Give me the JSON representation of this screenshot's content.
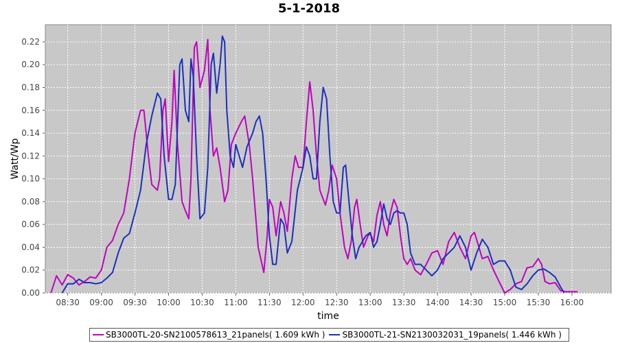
{
  "chart_data": {
    "type": "line",
    "title": "5-1-2018",
    "xlabel": "time",
    "ylabel": "Watt/Wp",
    "x_ticks": [
      "08:30",
      "09:00",
      "09:30",
      "10:00",
      "10:30",
      "11:00",
      "11:30",
      "12:00",
      "12:30",
      "13:00",
      "13:30",
      "14:00",
      "14:30",
      "15:00",
      "15:30",
      "16:00"
    ],
    "y_ticks": [
      "0.00",
      "0.02",
      "0.04",
      "0.06",
      "0.08",
      "0.10",
      "0.12",
      "0.14",
      "0.16",
      "0.18",
      "0.20",
      "0.22"
    ],
    "xlim": [
      "08:10",
      "16:35"
    ],
    "ylim": [
      0,
      0.235
    ],
    "grid": true,
    "legend_position": "bottom",
    "series": [
      {
        "name": "SB3000TL-20-SN2100578613_21panels",
        "legend_label": "SB3000TL-20-SN2100578613_21panels( 1.609 kWh )",
        "color": "#c000c0",
        "points": [
          [
            "08:15",
            0.0
          ],
          [
            "08:20",
            0.015
          ],
          [
            "08:25",
            0.007
          ],
          [
            "08:30",
            0.016
          ],
          [
            "08:35",
            0.013
          ],
          [
            "08:40",
            0.007
          ],
          [
            "08:45",
            0.01
          ],
          [
            "08:50",
            0.014
          ],
          [
            "08:55",
            0.013
          ],
          [
            "09:00",
            0.02
          ],
          [
            "09:05",
            0.04
          ],
          [
            "09:10",
            0.046
          ],
          [
            "09:15",
            0.06
          ],
          [
            "09:20",
            0.07
          ],
          [
            "09:25",
            0.1
          ],
          [
            "09:30",
            0.14
          ],
          [
            "09:35",
            0.16
          ],
          [
            "09:38",
            0.16
          ],
          [
            "09:42",
            0.12
          ],
          [
            "09:45",
            0.095
          ],
          [
            "09:50",
            0.09
          ],
          [
            "09:52",
            0.1
          ],
          [
            "09:55",
            0.16
          ],
          [
            "09:57",
            0.17
          ],
          [
            "10:00",
            0.115
          ],
          [
            "10:03",
            0.15
          ],
          [
            "10:05",
            0.195
          ],
          [
            "10:08",
            0.13
          ],
          [
            "10:12",
            0.08
          ],
          [
            "10:15",
            0.072
          ],
          [
            "10:18",
            0.065
          ],
          [
            "10:20",
            0.1
          ],
          [
            "10:23",
            0.215
          ],
          [
            "10:25",
            0.22
          ],
          [
            "10:28",
            0.18
          ],
          [
            "10:32",
            0.195
          ],
          [
            "10:35",
            0.222
          ],
          [
            "10:37",
            0.16
          ],
          [
            "10:40",
            0.12
          ],
          [
            "10:43",
            0.127
          ],
          [
            "10:46",
            0.11
          ],
          [
            "10:50",
            0.08
          ],
          [
            "10:53",
            0.09
          ],
          [
            "10:56",
            0.13
          ],
          [
            "11:00",
            0.14
          ],
          [
            "11:05",
            0.15
          ],
          [
            "11:08",
            0.155
          ],
          [
            "11:12",
            0.13
          ],
          [
            "11:15",
            0.1
          ],
          [
            "11:20",
            0.04
          ],
          [
            "11:25",
            0.018
          ],
          [
            "11:28",
            0.05
          ],
          [
            "11:30",
            0.082
          ],
          [
            "11:33",
            0.075
          ],
          [
            "11:36",
            0.05
          ],
          [
            "11:40",
            0.08
          ],
          [
            "11:43",
            0.07
          ],
          [
            "11:46",
            0.054
          ],
          [
            "11:50",
            0.1
          ],
          [
            "11:53",
            0.12
          ],
          [
            "11:56",
            0.11
          ],
          [
            "12:00",
            0.11
          ],
          [
            "12:03",
            0.15
          ],
          [
            "12:06",
            0.185
          ],
          [
            "12:09",
            0.16
          ],
          [
            "12:12",
            0.12
          ],
          [
            "12:15",
            0.09
          ],
          [
            "12:20",
            0.077
          ],
          [
            "12:23",
            0.09
          ],
          [
            "12:26",
            0.112
          ],
          [
            "12:30",
            0.1
          ],
          [
            "12:33",
            0.07
          ],
          [
            "12:37",
            0.04
          ],
          [
            "12:40",
            0.03
          ],
          [
            "12:43",
            0.045
          ],
          [
            "12:46",
            0.075
          ],
          [
            "12:48",
            0.082
          ],
          [
            "12:51",
            0.06
          ],
          [
            "12:54",
            0.04
          ],
          [
            "12:58",
            0.05
          ],
          [
            "13:00",
            0.052
          ],
          [
            "13:03",
            0.045
          ],
          [
            "13:06",
            0.068
          ],
          [
            "13:09",
            0.08
          ],
          [
            "13:12",
            0.06
          ],
          [
            "13:15",
            0.05
          ],
          [
            "13:18",
            0.07
          ],
          [
            "13:21",
            0.082
          ],
          [
            "13:24",
            0.075
          ],
          [
            "13:27",
            0.05
          ],
          [
            "13:30",
            0.03
          ],
          [
            "13:33",
            0.025
          ],
          [
            "13:36",
            0.03
          ],
          [
            "13:40",
            0.02
          ],
          [
            "13:45",
            0.016
          ],
          [
            "13:50",
            0.025
          ],
          [
            "13:55",
            0.035
          ],
          [
            "14:00",
            0.037
          ],
          [
            "14:05",
            0.025
          ],
          [
            "14:10",
            0.045
          ],
          [
            "14:15",
            0.053
          ],
          [
            "14:20",
            0.04
          ],
          [
            "14:25",
            0.03
          ],
          [
            "14:30",
            0.05
          ],
          [
            "14:33",
            0.053
          ],
          [
            "14:37",
            0.04
          ],
          [
            "14:40",
            0.03
          ],
          [
            "14:45",
            0.032
          ],
          [
            "14:50",
            0.02
          ],
          [
            "14:55",
            0.01
          ],
          [
            "15:00",
            0.0
          ],
          [
            "15:05",
            0.003
          ],
          [
            "15:10",
            0.008
          ],
          [
            "15:15",
            0.01
          ],
          [
            "15:20",
            0.022
          ],
          [
            "15:25",
            0.023
          ],
          [
            "15:30",
            0.03
          ],
          [
            "15:33",
            0.025
          ],
          [
            "15:36",
            0.01
          ],
          [
            "15:40",
            0.008
          ],
          [
            "15:45",
            0.009
          ],
          [
            "15:50",
            0.002
          ],
          [
            "15:55",
            0.001
          ],
          [
            "16:00",
            0.001
          ],
          [
            "16:05",
            0.001
          ]
        ]
      },
      {
        "name": "SB3000TL-21-SN2130032031_19panels",
        "legend_label": "SB3000TL-21-SN2130032031_19panels( 1.446 kWh )",
        "color": "#1a2fbf",
        "points": [
          [
            "08:25",
            0.0
          ],
          [
            "08:30",
            0.008
          ],
          [
            "08:35",
            0.008
          ],
          [
            "08:40",
            0.012
          ],
          [
            "08:45",
            0.009
          ],
          [
            "08:50",
            0.009
          ],
          [
            "08:55",
            0.008
          ],
          [
            "09:00",
            0.009
          ],
          [
            "09:05",
            0.013
          ],
          [
            "09:10",
            0.018
          ],
          [
            "09:15",
            0.035
          ],
          [
            "09:20",
            0.048
          ],
          [
            "09:25",
            0.052
          ],
          [
            "09:30",
            0.07
          ],
          [
            "09:35",
            0.09
          ],
          [
            "09:40",
            0.13
          ],
          [
            "09:45",
            0.155
          ],
          [
            "09:50",
            0.175
          ],
          [
            "09:53",
            0.17
          ],
          [
            "09:56",
            0.12
          ],
          [
            "10:00",
            0.082
          ],
          [
            "10:03",
            0.082
          ],
          [
            "10:06",
            0.095
          ],
          [
            "10:10",
            0.2
          ],
          [
            "10:12",
            0.205
          ],
          [
            "10:15",
            0.16
          ],
          [
            "10:18",
            0.15
          ],
          [
            "10:20",
            0.205
          ],
          [
            "10:22",
            0.19
          ],
          [
            "10:25",
            0.12
          ],
          [
            "10:28",
            0.065
          ],
          [
            "10:32",
            0.07
          ],
          [
            "10:35",
            0.11
          ],
          [
            "10:38",
            0.2
          ],
          [
            "10:40",
            0.21
          ],
          [
            "10:43",
            0.175
          ],
          [
            "10:46",
            0.2
          ],
          [
            "10:48",
            0.225
          ],
          [
            "10:50",
            0.22
          ],
          [
            "10:52",
            0.16
          ],
          [
            "10:55",
            0.12
          ],
          [
            "10:58",
            0.11
          ],
          [
            "11:00",
            0.13
          ],
          [
            "11:03",
            0.12
          ],
          [
            "11:06",
            0.11
          ],
          [
            "11:10",
            0.128
          ],
          [
            "11:15",
            0.14
          ],
          [
            "11:18",
            0.15
          ],
          [
            "11:21",
            0.155
          ],
          [
            "11:24",
            0.14
          ],
          [
            "11:27",
            0.1
          ],
          [
            "11:30",
            0.05
          ],
          [
            "11:33",
            0.025
          ],
          [
            "11:36",
            0.025
          ],
          [
            "11:40",
            0.065
          ],
          [
            "11:43",
            0.06
          ],
          [
            "11:46",
            0.035
          ],
          [
            "11:50",
            0.045
          ],
          [
            "11:55",
            0.09
          ],
          [
            "12:00",
            0.11
          ],
          [
            "12:03",
            0.128
          ],
          [
            "12:06",
            0.12
          ],
          [
            "12:09",
            0.1
          ],
          [
            "12:12",
            0.1
          ],
          [
            "12:15",
            0.15
          ],
          [
            "12:18",
            0.18
          ],
          [
            "12:21",
            0.17
          ],
          [
            "12:24",
            0.12
          ],
          [
            "12:27",
            0.08
          ],
          [
            "12:30",
            0.07
          ],
          [
            "12:33",
            0.07
          ],
          [
            "12:36",
            0.11
          ],
          [
            "12:38",
            0.112
          ],
          [
            "12:41",
            0.08
          ],
          [
            "12:44",
            0.05
          ],
          [
            "12:47",
            0.03
          ],
          [
            "12:50",
            0.04
          ],
          [
            "12:53",
            0.045
          ],
          [
            "12:56",
            0.05
          ],
          [
            "13:00",
            0.053
          ],
          [
            "13:03",
            0.04
          ],
          [
            "13:06",
            0.045
          ],
          [
            "13:09",
            0.06
          ],
          [
            "13:12",
            0.078
          ],
          [
            "13:15",
            0.065
          ],
          [
            "13:18",
            0.06
          ],
          [
            "13:21",
            0.07
          ],
          [
            "13:24",
            0.072
          ],
          [
            "13:27",
            0.07
          ],
          [
            "13:30",
            0.07
          ],
          [
            "13:33",
            0.06
          ],
          [
            "13:36",
            0.035
          ],
          [
            "13:40",
            0.025
          ],
          [
            "13:45",
            0.025
          ],
          [
            "13:50",
            0.02
          ],
          [
            "13:55",
            0.015
          ],
          [
            "14:00",
            0.02
          ],
          [
            "14:05",
            0.03
          ],
          [
            "14:10",
            0.035
          ],
          [
            "14:15",
            0.04
          ],
          [
            "14:20",
            0.05
          ],
          [
            "14:25",
            0.04
          ],
          [
            "14:30",
            0.02
          ],
          [
            "14:35",
            0.035
          ],
          [
            "14:40",
            0.047
          ],
          [
            "14:45",
            0.04
          ],
          [
            "14:50",
            0.025
          ],
          [
            "14:55",
            0.028
          ],
          [
            "15:00",
            0.028
          ],
          [
            "15:05",
            0.02
          ],
          [
            "15:10",
            0.005
          ],
          [
            "15:15",
            0.003
          ],
          [
            "15:20",
            0.008
          ],
          [
            "15:25",
            0.015
          ],
          [
            "15:30",
            0.02
          ],
          [
            "15:35",
            0.021
          ],
          [
            "15:40",
            0.018
          ],
          [
            "15:45",
            0.014
          ],
          [
            "15:50",
            0.005
          ],
          [
            "15:53",
            0.0
          ]
        ]
      }
    ]
  }
}
